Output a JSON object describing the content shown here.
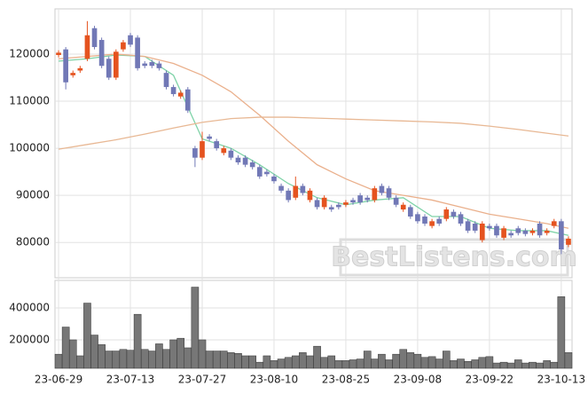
{
  "chart_data": [
    {
      "type": "candlestick",
      "categories": [
        "23-06-29",
        null,
        null,
        null,
        null,
        null,
        null,
        null,
        null,
        null,
        "23-07-13",
        null,
        null,
        null,
        null,
        null,
        null,
        null,
        null,
        null,
        "23-07-27",
        null,
        null,
        null,
        null,
        null,
        null,
        null,
        null,
        null,
        "23-08-10",
        null,
        null,
        null,
        null,
        null,
        null,
        null,
        null,
        null,
        "23-08-25",
        null,
        null,
        null,
        null,
        null,
        null,
        null,
        null,
        null,
        "23-09-08",
        null,
        null,
        null,
        null,
        null,
        null,
        null,
        null,
        null,
        "23-09-22",
        null,
        null,
        null,
        null,
        null,
        null,
        null,
        null,
        null,
        "23-10-13",
        null
      ],
      "open": [
        119800,
        121000,
        115500,
        116500,
        119000,
        125500,
        123000,
        119000,
        115000,
        121000,
        124000,
        123500,
        118000,
        118300,
        118000,
        116000,
        113000,
        111000,
        112500,
        100000,
        98000,
        102500,
        101500,
        99000,
        99500,
        98000,
        98000,
        97000,
        96000,
        95000,
        94000,
        92000,
        91000,
        89500,
        92000,
        89000,
        89000,
        87500,
        87500,
        88000,
        88000,
        89000,
        90000,
        89500,
        89000,
        92000,
        91500,
        89500,
        87000,
        87500,
        86000,
        85500,
        83500,
        85000,
        85000,
        86500,
        86000,
        84500,
        84000,
        80500,
        83500,
        83500,
        81000,
        82000,
        83000,
        82500,
        82000,
        84000,
        82000,
        83500,
        84500,
        79500
      ],
      "high": [
        120800,
        121500,
        116500,
        117500,
        127000,
        126000,
        123500,
        119500,
        121000,
        123000,
        124500,
        124000,
        118500,
        118800,
        118500,
        116500,
        113500,
        112300,
        113000,
        100500,
        103500,
        103000,
        102000,
        100500,
        100000,
        98500,
        98500,
        97500,
        96500,
        95500,
        94500,
        92500,
        91500,
        94000,
        92500,
        91500,
        89500,
        90000,
        88000,
        88500,
        89000,
        89500,
        90500,
        90000,
        92000,
        92500,
        92000,
        90000,
        88500,
        88000,
        86500,
        86000,
        85000,
        85500,
        87500,
        87000,
        86500,
        85000,
        84500,
        84500,
        84000,
        84000,
        83500,
        82500,
        83500,
        83000,
        83000,
        84500,
        83000,
        85000,
        85000,
        81300
      ],
      "low": [
        119300,
        112500,
        115000,
        116000,
        118500,
        121000,
        117000,
        114500,
        114500,
        120500,
        121500,
        116500,
        117000,
        117000,
        116500,
        112500,
        111000,
        110500,
        107500,
        96000,
        97500,
        101500,
        99500,
        98500,
        97500,
        96500,
        96000,
        95500,
        93500,
        94000,
        92500,
        90500,
        88500,
        89000,
        90000,
        88500,
        87000,
        87000,
        86500,
        87000,
        87500,
        88000,
        88000,
        88500,
        88500,
        90000,
        89000,
        87500,
        86500,
        85000,
        84000,
        83500,
        83000,
        83500,
        84500,
        85000,
        83500,
        82000,
        82000,
        80000,
        82500,
        81000,
        80500,
        81000,
        81500,
        81300,
        81500,
        81000,
        81500,
        83000,
        77500,
        79000
      ],
      "close": [
        120300,
        114000,
        116000,
        117000,
        124000,
        121500,
        117500,
        115000,
        120500,
        122500,
        122000,
        117000,
        117500,
        117500,
        117000,
        113000,
        111500,
        111800,
        108000,
        98000,
        101500,
        102000,
        100000,
        100000,
        98000,
        97000,
        96500,
        96000,
        94000,
        94500,
        93000,
        91000,
        89000,
        92000,
        90500,
        91000,
        87500,
        89500,
        87000,
        87500,
        88500,
        88500,
        88500,
        89000,
        91500,
        90500,
        89500,
        88000,
        88000,
        85500,
        84500,
        84000,
        84500,
        84000,
        87000,
        85500,
        84000,
        82500,
        82500,
        84000,
        83000,
        81500,
        83000,
        81500,
        82000,
        81800,
        82500,
        81500,
        82500,
        84500,
        78500,
        80800
      ],
      "up_color": "#e5531f",
      "down_color": "#7178b6",
      "lines": [
        {
          "color": "#7fd3a8",
          "x": [
            0,
            4,
            8,
            12,
            16,
            20,
            24,
            28,
            32,
            36,
            40,
            44,
            48,
            52,
            56,
            60,
            64,
            68,
            71
          ],
          "values": [
            118500,
            119000,
            119800,
            119500,
            115500,
            102000,
            100000,
            96500,
            92500,
            89500,
            88000,
            89000,
            89500,
            85500,
            85500,
            83000,
            82500,
            82500,
            81500
          ]
        },
        {
          "color": "#eab08c",
          "x": [
            0,
            4,
            8,
            12,
            16,
            20,
            24,
            28,
            32,
            36,
            40,
            44,
            48,
            52,
            56,
            60,
            64,
            68,
            71
          ],
          "values": [
            119000,
            119500,
            120000,
            119500,
            118000,
            115500,
            112000,
            107000,
            101500,
            96500,
            93500,
            91000,
            90000,
            89000,
            87500,
            86000,
            85000,
            84000,
            83000
          ]
        },
        {
          "color": "#e8b894",
          "x": [
            0,
            4,
            8,
            12,
            16,
            20,
            24,
            28,
            32,
            36,
            40,
            44,
            48,
            52,
            56,
            60,
            64,
            68,
            71
          ],
          "values": [
            99800,
            100800,
            101800,
            103000,
            104300,
            105500,
            106300,
            106600,
            106600,
            106400,
            106200,
            106000,
            105800,
            105600,
            105300,
            104700,
            104000,
            103200,
            102600
          ]
        }
      ],
      "ylim": [
        72500,
        129600
      ],
      "yticks": [
        80000,
        90000,
        100000,
        110000,
        120000
      ],
      "grid": true,
      "watermark": "BestListens.com"
    },
    {
      "type": "bar",
      "values": [
        110000,
        280000,
        200000,
        100000,
        430000,
        230000,
        170000,
        130000,
        130000,
        140000,
        135000,
        360000,
        140000,
        130000,
        175000,
        140000,
        200000,
        210000,
        150000,
        530000,
        200000,
        130000,
        130000,
        130000,
        120000,
        115000,
        100000,
        100000,
        60000,
        100000,
        70000,
        80000,
        90000,
        100000,
        120000,
        100000,
        160000,
        90000,
        100000,
        70000,
        70000,
        75000,
        80000,
        130000,
        80000,
        110000,
        75000,
        110000,
        140000,
        120000,
        110000,
        90000,
        95000,
        80000,
        130000,
        70000,
        80000,
        65000,
        75000,
        90000,
        95000,
        55000,
        60000,
        55000,
        75000,
        55000,
        60000,
        55000,
        70000,
        60000,
        470000,
        120000
      ],
      "color": "#777777",
      "ylim": [
        22000,
        572000
      ],
      "yticks": [
        200000,
        400000
      ],
      "grid": true
    }
  ]
}
